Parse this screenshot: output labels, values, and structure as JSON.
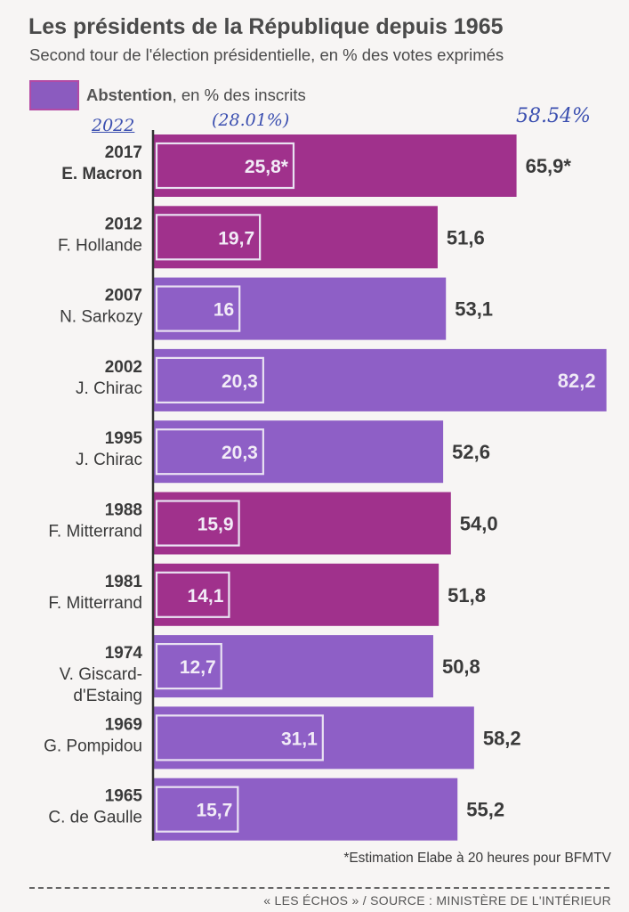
{
  "title": "Les présidents de la République depuis 1965",
  "subtitle": "Second tour de l'élection présidentielle, en % des votes exprimés",
  "legend": {
    "bold": "Abstention",
    "rest": ", en % des inscrits"
  },
  "annotations": {
    "year": "2022",
    "abstention": "(28.01%)",
    "total": "58.54%"
  },
  "colors": {
    "purple": "#8e5fc6",
    "magenta": "#a0318c",
    "axis": "#333333"
  },
  "footnote": "*Estimation Elabe à 20 heures pour BFMTV",
  "source": "« LES ÉCHOS » / SOURCE : MINISTÈRE DE L'INTÉRIEUR",
  "chart_data": {
    "type": "bar",
    "orientation": "horizontal",
    "xlim": [
      0,
      100
    ],
    "categories": [
      {
        "year": "2017",
        "name": "E. Macron",
        "bold_name": true,
        "color": "magenta"
      },
      {
        "year": "2012",
        "name": "F. Hollande",
        "bold_name": false,
        "color": "magenta"
      },
      {
        "year": "2007",
        "name": "N. Sarkozy",
        "bold_name": false,
        "color": "purple"
      },
      {
        "year": "2002",
        "name": "J. Chirac",
        "bold_name": false,
        "color": "purple"
      },
      {
        "year": "1995",
        "name": "J. Chirac",
        "bold_name": false,
        "color": "purple"
      },
      {
        "year": "1988",
        "name": "F. Mitterrand",
        "bold_name": false,
        "color": "magenta"
      },
      {
        "year": "1981",
        "name": "F. Mitterrand",
        "bold_name": false,
        "color": "magenta"
      },
      {
        "year": "1974",
        "name": "V. Giscard-\nd'Estaing",
        "bold_name": false,
        "color": "purple"
      },
      {
        "year": "1969",
        "name": "G. Pompidou",
        "bold_name": false,
        "color": "purple"
      },
      {
        "year": "1965",
        "name": "C. de Gaulle",
        "bold_name": false,
        "color": "purple"
      }
    ],
    "series": [
      {
        "name": "Votes exprimés",
        "values": [
          65.9,
          51.6,
          53.1,
          82.2,
          52.6,
          54.0,
          51.8,
          50.8,
          58.2,
          55.2
        ],
        "labels": [
          "65,9*",
          "51,6",
          "53,1",
          "82,2",
          "52,6",
          "54,0",
          "51,8",
          "50,8",
          "58,2",
          "55,2"
        ]
      },
      {
        "name": "Abstention",
        "values": [
          25.8,
          19.7,
          16,
          20.3,
          20.3,
          15.9,
          14.1,
          12.7,
          31.1,
          15.7
        ],
        "labels": [
          "25,8*",
          "19,7",
          "16",
          "20,3",
          "20,3",
          "15,9",
          "14,1",
          "12,7",
          "31,1",
          "15,7"
        ]
      }
    ]
  }
}
